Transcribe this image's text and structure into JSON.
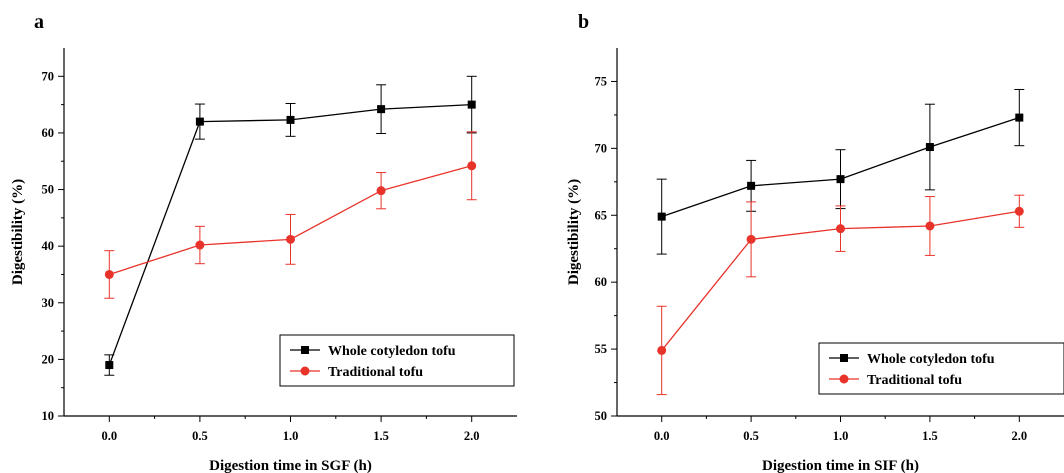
{
  "chart_data": [
    {
      "type": "line",
      "panel_label": "a",
      "xlabel": "Digestion time in SGF (h)",
      "ylabel": "Digestibility (%)",
      "x": [
        0.0,
        0.5,
        1.0,
        1.5,
        2.0
      ],
      "xticks": [
        "0.0",
        "0.5",
        "1.0",
        "1.5",
        "2.0"
      ],
      "xlim": [
        -0.25,
        2.25
      ],
      "ylim": [
        10,
        75
      ],
      "yticks": [
        10,
        20,
        30,
        40,
        50,
        60,
        70
      ],
      "legend_position": "bottom-right",
      "series": [
        {
          "name": "Whole cotyledon tofu",
          "color": "#000000",
          "marker": "square",
          "values": [
            19.0,
            62.0,
            62.3,
            64.2,
            65.0
          ],
          "errors": [
            1.8,
            3.1,
            2.9,
            4.3,
            5.0
          ]
        },
        {
          "name": "Traditional tofu",
          "color": "#e8332a",
          "marker": "circle",
          "values": [
            35.0,
            40.2,
            41.2,
            49.8,
            54.2
          ],
          "errors": [
            4.2,
            3.3,
            4.4,
            3.2,
            6.0
          ]
        }
      ]
    },
    {
      "type": "line",
      "panel_label": "b",
      "xlabel": "Digestion time in SIF (h)",
      "ylabel": "Digestibility (%)",
      "x": [
        0.0,
        0.5,
        1.0,
        1.5,
        2.0
      ],
      "xticks": [
        "0.0",
        "0.5",
        "1.0",
        "1.5",
        "2.0"
      ],
      "xlim": [
        -0.25,
        2.25
      ],
      "ylim": [
        50,
        77.5
      ],
      "yticks": [
        50,
        55,
        60,
        65,
        70,
        75
      ],
      "legend_position": "bottom-right",
      "series": [
        {
          "name": "Whole cotyledon tofu",
          "color": "#000000",
          "marker": "square",
          "values": [
            64.9,
            67.2,
            67.7,
            70.1,
            72.3
          ],
          "errors": [
            2.8,
            1.9,
            2.2,
            3.2,
            2.1
          ]
        },
        {
          "name": "Traditional tofu",
          "color": "#e8332a",
          "marker": "circle",
          "values": [
            54.9,
            63.2,
            64.0,
            64.2,
            65.3
          ],
          "errors": [
            3.3,
            2.8,
            1.7,
            2.2,
            1.2
          ]
        }
      ]
    }
  ]
}
